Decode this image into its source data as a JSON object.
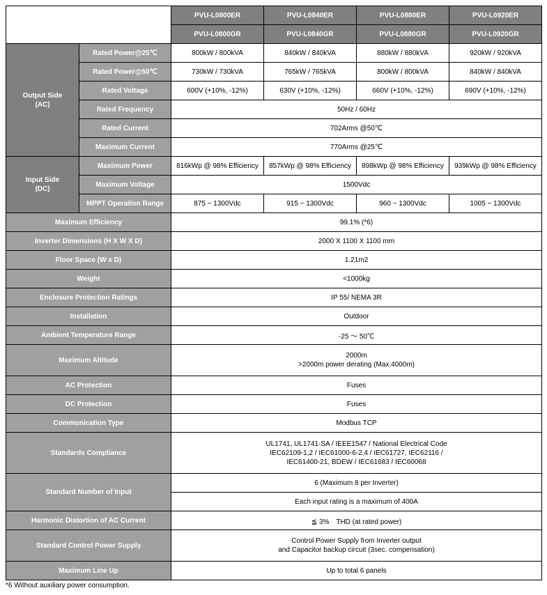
{
  "models": {
    "er": [
      "PVU-L0800ER",
      "PVU-L0840ER",
      "PVU-L0880ER",
      "PVU-L0920ER"
    ],
    "gr": [
      "PVU-L0800GR",
      "PVU-L0840GR",
      "PVU-L0880GR",
      "PVU-L0920GR"
    ]
  },
  "sections": {
    "output": {
      "title": "Output Side\n(AC)",
      "rows": {
        "rp25": {
          "label": "Rated Power@25℃",
          "vals": [
            "800kW / 800kVA",
            "840kW / 840kVA",
            "880kW / 880kVA",
            "920kW / 920kVA"
          ]
        },
        "rp50": {
          "label": "Rated Power@50℃",
          "vals": [
            "730kW / 730kVA",
            "765kW / 765kVA",
            "800kW / 800kVA",
            "840kW / 840kVA"
          ]
        },
        "rv": {
          "label": "Rated Voltage",
          "vals": [
            "600V (+10%, -12%)",
            "630V (+10%, -12%)",
            "660V (+10%, -12%)",
            "690V (+10%, -12%)"
          ]
        },
        "rf": {
          "label": "Rated Frequency",
          "span": "50Hz / 60Hz"
        },
        "rc": {
          "label": "Rated Current",
          "span": "702Arms @50℃"
        },
        "mc": {
          "label": "Maximum Current",
          "span": "770Arms @25℃"
        }
      }
    },
    "input": {
      "title": "Input Side\n(DC)",
      "rows": {
        "mp": {
          "label": "Maximum Power",
          "vals": [
            "816kWp @ 98% Efficiency",
            "857kWp @ 98% Efficiency",
            "898kWp @ 98% Efficiency",
            "939kWp @ 98% Efficiency"
          ]
        },
        "mv": {
          "label": "Maximum Voltage",
          "span": "1500Vdc"
        },
        "mor": {
          "label": "MPPT Operation Range",
          "vals": [
            "875 ~ 1300Vdc",
            "915 ~ 1300Vdc",
            "960 ~ 1300Vdc",
            "1005 ~ 1300Vdc"
          ]
        }
      }
    }
  },
  "wide": [
    {
      "label": "Maximum Efficiency",
      "val": "99.1% (*6)"
    },
    {
      "label": "Inverter Dimensions (H X W X D)",
      "val": "2000 X 1100 X 1100 mm"
    },
    {
      "label": "Floor Space (W x D)",
      "val": "1.21m2"
    },
    {
      "label": "Weight",
      "val": "<1000kg"
    },
    {
      "label": "Enclosure Protection Ratings",
      "val": "IP 55/ NEMA 3R"
    },
    {
      "label": "Installation",
      "val": "Outdoor"
    },
    {
      "label": "Ambient Temperature Range",
      "val": "-25 ～ 50℃"
    },
    {
      "label": "Maximum Altitude",
      "val": "2000m\n>2000m power derating (Max.4000m)"
    },
    {
      "label": "AC Protection",
      "val": "Fuses"
    },
    {
      "label": "DC Protection",
      "val": "Fuses"
    },
    {
      "label": "Communication Type",
      "val": "Modbus TCP"
    },
    {
      "label": "Standards Compliance",
      "val": "UL1741, UL1741-SA / IEEE1547 / National Electrical Code\nIEC62109-1,2 / IEC61000-6-2,4 / IEC61727, IEC62116 /\nIEC61400-21, BDEW / IEC61683 / IEC60068"
    }
  ],
  "stdInput": {
    "label": "Standard Number of Input",
    "v1": "6 (Maximum 8 per Inverter)",
    "v2": "Each input rating is a maximum of 400A"
  },
  "wide2": [
    {
      "label": "Harmonic Distortion of AC Current",
      "val": "≦ 3%　THD (at rated power)"
    },
    {
      "label": "Standard Control Power Supply",
      "val": "Control Power Supply from Inverter output\nand Capacitor backup circuit (3sec. compensation)"
    },
    {
      "label": "Maximum Line Up",
      "val": "Up to total 6 panels"
    }
  ],
  "footnote": "*6 Without auxiliary power consumption.",
  "colwidths": [
    "105px",
    "132px",
    "133px",
    "133px",
    "133px",
    "133px"
  ],
  "colors": {
    "hdr": "#808080",
    "label": "#a0a0a0",
    "border": "#000000",
    "text_light": "#ffffff",
    "text_dark": "#000000",
    "bg": "#ffffff"
  }
}
